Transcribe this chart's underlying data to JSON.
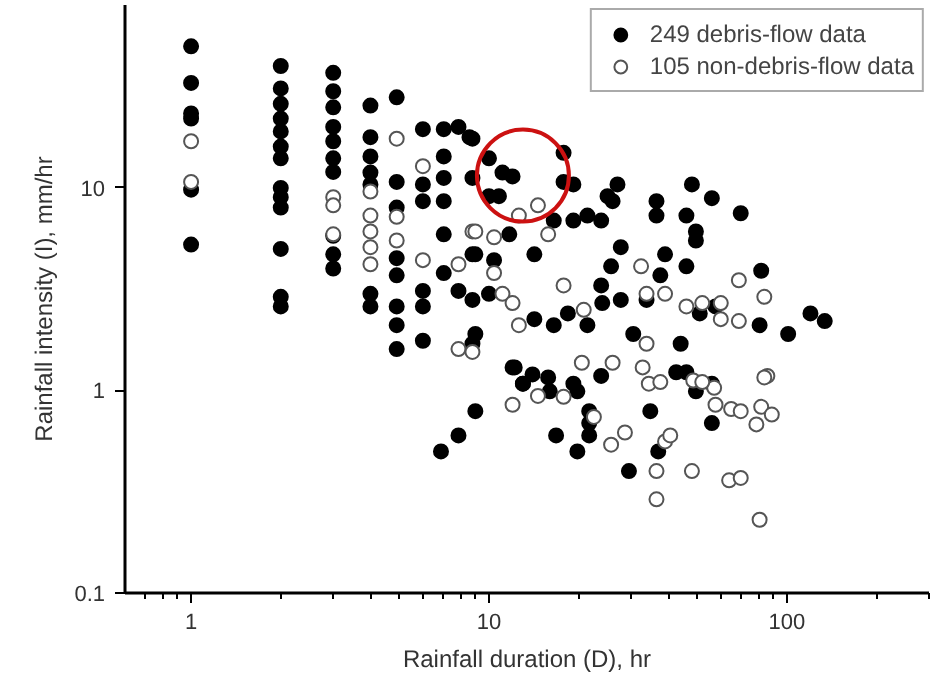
{
  "chart_data": {
    "type": "scatter",
    "xlabel": "Rainfall duration (D), hr",
    "ylabel": "Rainfall intensity (I), mm/hr",
    "log": "xy",
    "grid": false,
    "legend": "top right",
    "marker": "circle",
    "xlim": [
      0.6,
      300
    ],
    "ylim": [
      0.1,
      80
    ],
    "xticks": [
      {
        "value": 0.7,
        "label": null
      },
      {
        "value": 0.8,
        "label": null
      },
      {
        "value": 0.9,
        "label": null
      },
      1,
      {
        "value": 2,
        "label": null
      },
      {
        "value": 3,
        "label": null
      },
      {
        "value": 4,
        "label": null
      },
      {
        "value": 5,
        "label": null
      },
      {
        "value": 6,
        "label": null
      },
      {
        "value": 7,
        "label": null
      },
      {
        "value": 8,
        "label": null
      },
      {
        "value": 9,
        "label": null
      },
      10,
      {
        "value": 20,
        "label": null
      },
      {
        "value": 30,
        "label": null
      },
      {
        "value": 40,
        "label": null
      },
      {
        "value": 50,
        "label": null
      },
      {
        "value": 60,
        "label": null
      },
      {
        "value": 70,
        "label": null
      },
      {
        "value": 80,
        "label": null
      },
      {
        "value": 90,
        "label": null
      },
      100,
      {
        "value": 200,
        "label": null
      },
      {
        "value": 300,
        "label": null
      }
    ],
    "yticks": [
      0.1,
      1,
      10
    ],
    "series": [
      {
        "name": "249 debris-flow data",
        "color": "#000000",
        "x": [
          1,
          1,
          1,
          1,
          1,
          1,
          2,
          2,
          2,
          2,
          2,
          2,
          2,
          2,
          2,
          2,
          2,
          2,
          2,
          3,
          3,
          3,
          3,
          3,
          3,
          3,
          3,
          3,
          3,
          4,
          4,
          4,
          4,
          4,
          4,
          4,
          4.9,
          4.9,
          4.9,
          4.9,
          4.9,
          4.9,
          4.9,
          4.9,
          6,
          6,
          6,
          6,
          6,
          6,
          7.05,
          7.05,
          7.05,
          7.05,
          7.05,
          7.05,
          7.9,
          7.9,
          8.8,
          8.8,
          8.8,
          8.8,
          8.8,
          6.9,
          7.9,
          9,
          12,
          13,
          14,
          16,
          19.8,
          21.7,
          21.7,
          21.7,
          16.8,
          19.8,
          23.8,
          29.5,
          34.8,
          37,
          42.5,
          49.5,
          56,
          56,
          17.8,
          19.2,
          27,
          25,
          36.5,
          36.5,
          48,
          56,
          46,
          70,
          49.5,
          23.8,
          19.2,
          21.4,
          27.7,
          39,
          46,
          49.5,
          25.7,
          23.8,
          24,
          27.7,
          30.5,
          21.4,
          16.5,
          14.2,
          51,
          44,
          57.6,
          82,
          81,
          101,
          120,
          134,
          15.8,
          13,
          19.2,
          12.2,
          46,
          11.7,
          10.4,
          10,
          9,
          9,
          14.2,
          18.4,
          33.8,
          26,
          37.6,
          16.5,
          8.6,
          10,
          11.1,
          12,
          10,
          10.8,
          17.8
        ],
        "values": [
          50,
          33,
          23.3,
          22,
          9.8,
          5.25,
          40,
          31,
          26,
          22,
          19,
          16,
          14,
          10,
          9,
          8,
          5,
          2.9,
          2.6,
          37,
          30,
          25,
          20,
          17,
          14,
          12,
          5.8,
          4.7,
          4,
          25.5,
          17.8,
          14.3,
          11.9,
          10.4,
          3,
          2.6,
          28,
          10.7,
          8,
          4.5,
          3.7,
          2.6,
          2.1,
          1.6,
          19.5,
          10.4,
          8.6,
          3.1,
          2.6,
          1.76,
          19.5,
          14.3,
          11.2,
          8.6,
          5.9,
          3.8,
          20,
          3.1,
          17.5,
          11.2,
          4.7,
          2.8,
          1.7,
          0.5,
          0.6,
          0.79,
          1.3,
          1.08,
          1.2,
          0.99,
          0.99,
          0.79,
          0.69,
          0.6,
          0.6,
          0.5,
          1.18,
          0.4,
          0.79,
          0.5,
          1.23,
          0.99,
          1.08,
          0.69,
          14.9,
          10.4,
          10.4,
          9.1,
          8.6,
          7.3,
          10.4,
          8.9,
          7.3,
          7.5,
          6.1,
          6.9,
          6.9,
          7.3,
          5.1,
          4.7,
          4.1,
          5.5,
          4.1,
          3.3,
          2.7,
          2.8,
          1.9,
          2.1,
          2.1,
          2.25,
          2.4,
          1.7,
          2.6,
          3.9,
          2.1,
          1.9,
          2.4,
          2.2,
          1.16,
          1.08,
          1.08,
          1.3,
          1.23,
          5.9,
          4.4,
          3,
          1.9,
          4.7,
          4.7,
          2.4,
          2.8,
          8.6,
          3.7,
          6.9,
          17.8,
          14,
          11.9,
          11.4,
          9.1,
          9.1,
          10.7
        ]
      },
      {
        "name": "105 non-debris-flow data",
        "color": "#555555",
        "x": [
          1,
          1,
          3,
          3,
          3,
          4.9,
          4.9,
          4.9,
          6,
          6,
          7.9,
          8.8,
          7.9,
          8.8,
          4,
          4,
          4,
          4,
          4,
          12,
          14.6,
          17.8,
          22.5,
          25.7,
          28.6,
          32.8,
          34.4,
          37.6,
          39,
          40.6,
          36.5,
          36.5,
          48,
          48.5,
          57,
          57.6,
          65,
          70,
          64,
          70,
          79,
          82,
          89,
          86,
          81,
          14.6,
          12.6,
          9,
          10.4,
          10.4,
          11.1,
          12,
          12.6,
          15.8,
          17.8,
          20.8,
          32.4,
          33.8,
          39,
          46,
          52,
          60,
          69,
          84,
          69,
          60,
          33.8,
          26,
          20.5,
          84,
          52
        ],
        "values": [
          17,
          10.7,
          9,
          8.2,
          5.9,
          17.5,
          7.2,
          5.5,
          12.8,
          4.4,
          4.2,
          6.1,
          1.6,
          1.55,
          9.6,
          7.3,
          6.1,
          5.1,
          4.2,
          0.85,
          0.94,
          0.93,
          0.74,
          0.54,
          0.62,
          1.3,
          1.08,
          1.1,
          0.56,
          0.6,
          0.4,
          0.29,
          0.4,
          1.12,
          1.03,
          0.85,
          0.81,
          0.79,
          0.36,
          0.37,
          0.68,
          0.83,
          0.76,
          1.18,
          0.23,
          8.2,
          7.3,
          6.1,
          5.7,
          3.8,
          3,
          2.7,
          2.1,
          5.9,
          3.3,
          2.5,
          4.1,
          3,
          3,
          2.6,
          2.7,
          2.7,
          3.5,
          2.9,
          2.2,
          2.25,
          1.7,
          1.37,
          1.37,
          1.16,
          1.1
        ]
      }
    ]
  }
}
